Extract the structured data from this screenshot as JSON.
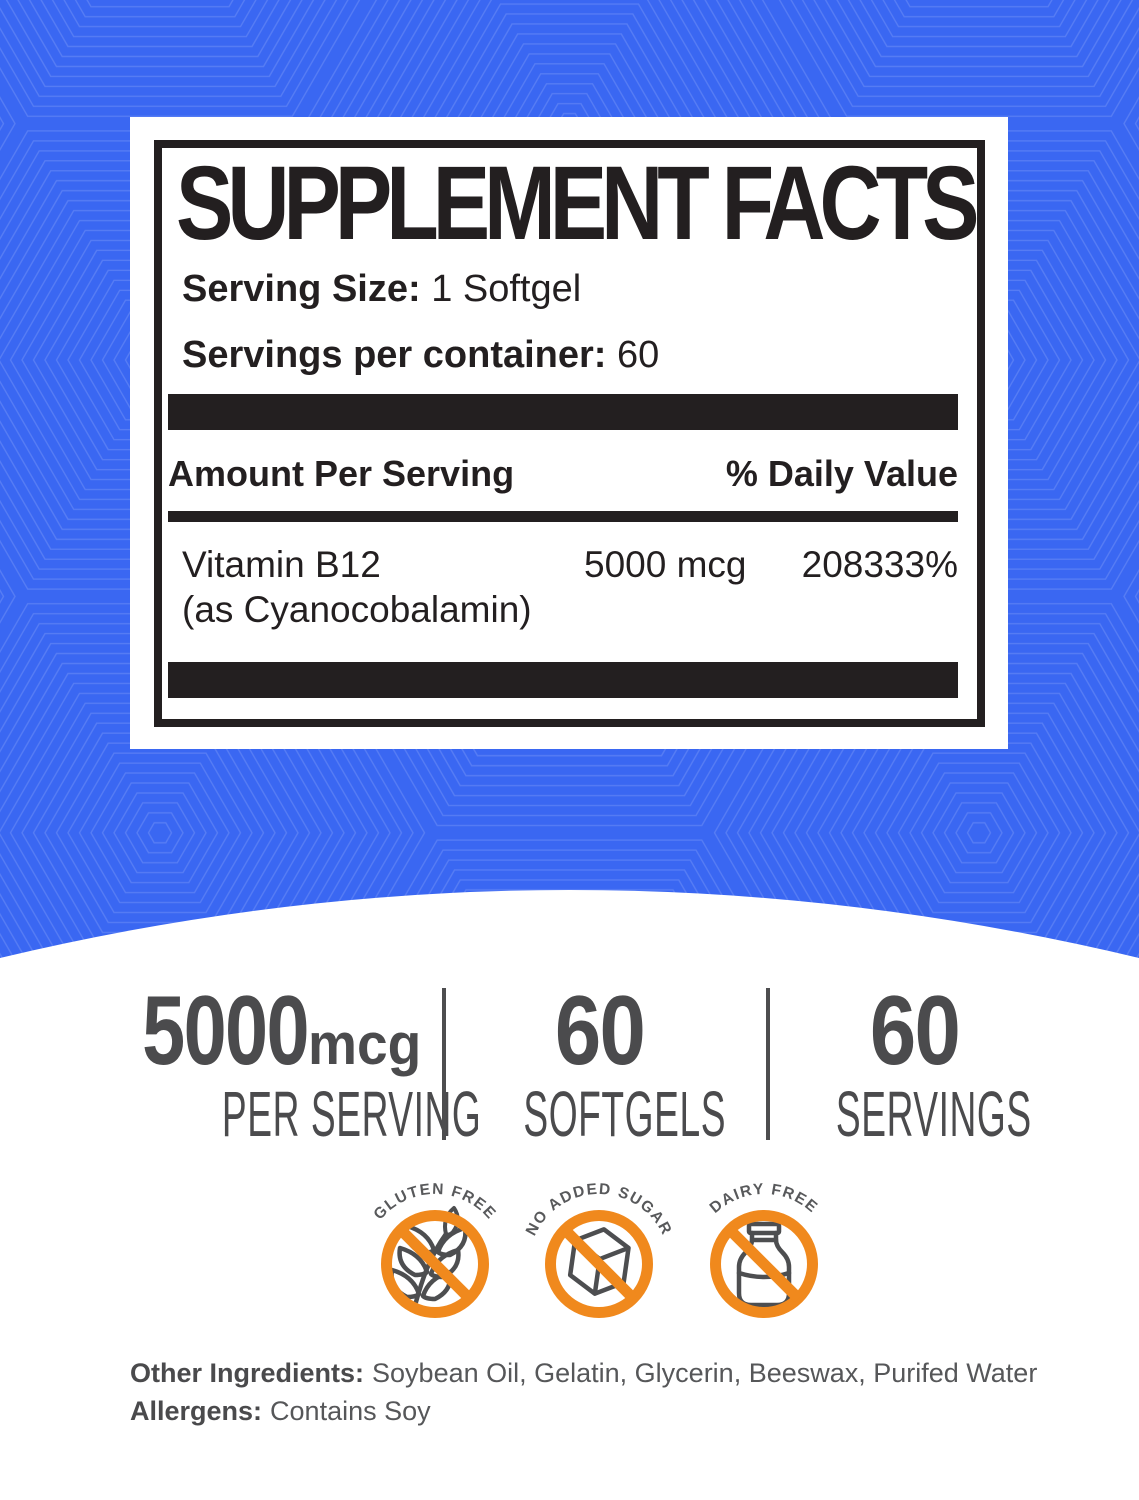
{
  "panel": {
    "title": "SUPPLEMENT FACTS",
    "serving_size_label": "Serving Size:",
    "serving_size_value": "1 Softgel",
    "servings_label": "Servings per container:",
    "servings_value": "60",
    "amount_header": "Amount Per Serving",
    "dv_header": "% Daily Value",
    "rows": [
      {
        "name": "Vitamin B12",
        "name_sub": "(as Cyanocobalamin)",
        "amount": "5000 mcg",
        "daily_value": "208333%"
      }
    ]
  },
  "stats": [
    {
      "value": "5000",
      "unit": "mcg",
      "label": "PER SERVING"
    },
    {
      "value": "60",
      "unit": "",
      "label": "SOFTGELS"
    },
    {
      "value": "60",
      "unit": "",
      "label": "SERVINGS"
    }
  ],
  "badges": [
    {
      "label": "GLUTEN FREE",
      "icon": "wheat"
    },
    {
      "label": "NO ADDED SUGAR",
      "icon": "sugar-cube"
    },
    {
      "label": "DAIRY FREE",
      "icon": "milk-bottle"
    }
  ],
  "footer": {
    "other_ingredients_label": "Other Ingredients:",
    "other_ingredients_value": "Soybean Oil, Gelatin, Glycerin, Beeswax, Purifed Water",
    "allergens_label": "Allergens:",
    "allergens_value": "Contains Soy"
  },
  "colors": {
    "background_blue": "#3A67F2",
    "hexagon_line": "rgba(255,255,255,0.14)",
    "panel_black": "#231F20",
    "stat_gray": "#4B4B4D",
    "badge_orange": "#F0891D",
    "badge_icon_gray": "#4D4E50",
    "footer_text_gray": "#565759"
  }
}
